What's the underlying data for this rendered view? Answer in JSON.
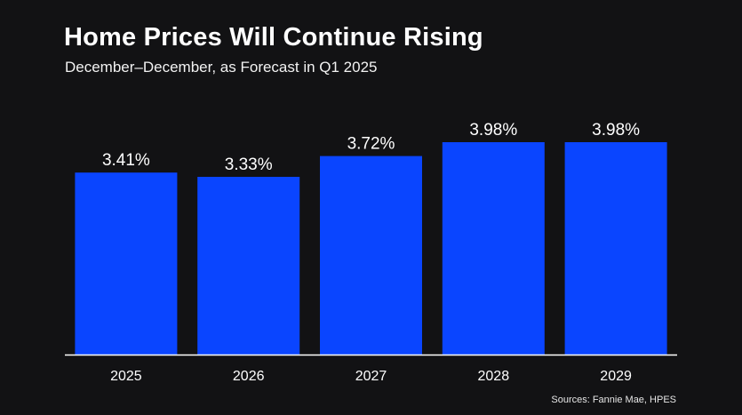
{
  "chart_data": {
    "type": "bar",
    "title": "Home Prices Will Continue Rising",
    "subtitle": "December–December, as Forecast in Q1 2025",
    "categories": [
      "2025",
      "2026",
      "2027",
      "2028",
      "2029"
    ],
    "values": [
      3.41,
      3.33,
      3.72,
      3.98,
      3.98
    ],
    "data_labels": [
      "3.41%",
      "3.33%",
      "3.72%",
      "3.98%",
      "3.98%"
    ],
    "xlabel": "",
    "ylabel": "",
    "ylim": [
      0,
      3.98
    ],
    "grid": false,
    "colors": {
      "bar": "#0a45ff",
      "background": "#121214",
      "text": "#ffffff",
      "axis": "#ffffff"
    }
  },
  "source": "Sources: Fannie Mae, HPES"
}
